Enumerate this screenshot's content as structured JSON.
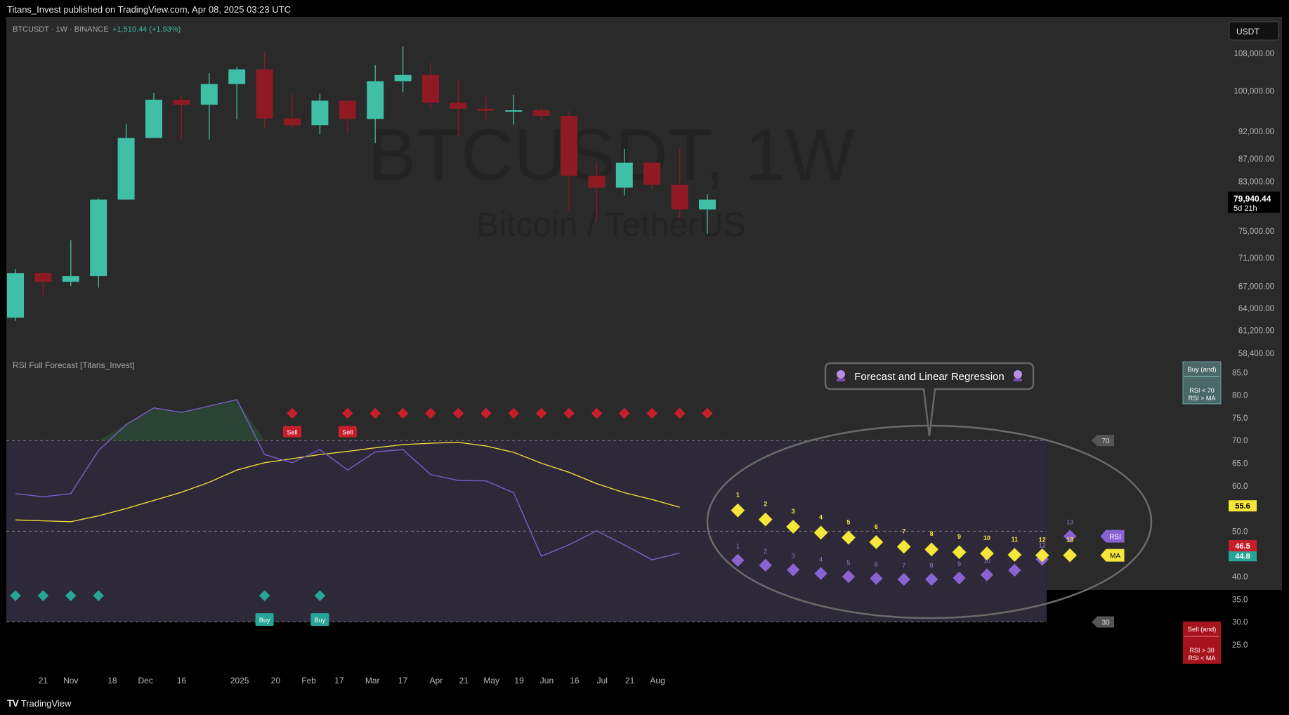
{
  "header": {
    "published": "Titans_Invest published on TradingView.com, Apr 08, 2025 03:23 UTC"
  },
  "footer": {
    "brand": "TradingView",
    "logo_icon": "tradingview-logo-icon"
  },
  "colors": {
    "up": "#3fbfa6",
    "down": "#8f1a24",
    "rsi": "#7b5ec9",
    "ma": "#e8d83c",
    "sell": "#c81e2c",
    "buy": "#27a698",
    "forecast_rsi": "#8a63d2",
    "forecast_ma": "#f5e63a"
  },
  "chart_data": [
    {
      "type": "candlestick",
      "title": "BTCUSDT · 1W · BINANCE",
      "change": "+1,510.44 (+1.93%)",
      "watermark": "BTCUSDT, 1W",
      "watermark_sub": "Bitcoin / TetherUS",
      "currency_button": "USDT",
      "last_price": "79,940.44",
      "countdown": "5d 21h",
      "y_scale": "log",
      "y_range": [
        57800,
        110500
      ],
      "y_ticks": [
        "108,000.00",
        "100,000.00",
        "92,000.00",
        "87,000.00",
        "83,000.00",
        "75,000.00",
        "71,000.00",
        "67,000.00",
        "64,000.00",
        "61,200.00",
        "58,400.00"
      ],
      "candles": [
        {
          "o": 62800,
          "h": 69400,
          "l": 62400,
          "c": 68800
        },
        {
          "o": 68800,
          "h": 69000,
          "l": 65500,
          "c": 67600
        },
        {
          "o": 67600,
          "h": 73600,
          "l": 67000,
          "c": 68400
        },
        {
          "o": 68400,
          "h": 80200,
          "l": 66800,
          "c": 80000
        },
        {
          "o": 80000,
          "h": 93400,
          "l": 80000,
          "c": 90800
        },
        {
          "o": 90800,
          "h": 99600,
          "l": 90800,
          "c": 98200
        },
        {
          "o": 98200,
          "h": 98900,
          "l": 90600,
          "c": 97200
        },
        {
          "o": 97200,
          "h": 103700,
          "l": 90500,
          "c": 101400
        },
        {
          "o": 101400,
          "h": 105000,
          "l": 94300,
          "c": 104500
        },
        {
          "o": 104500,
          "h": 108300,
          "l": 92500,
          "c": 94500
        },
        {
          "o": 94500,
          "h": 99300,
          "l": 92700,
          "c": 93200
        },
        {
          "o": 93200,
          "h": 99400,
          "l": 91500,
          "c": 98000
        },
        {
          "o": 98000,
          "h": 98000,
          "l": 91700,
          "c": 94400
        },
        {
          "o": 94400,
          "h": 105400,
          "l": 89800,
          "c": 102000
        },
        {
          "o": 102000,
          "h": 109500,
          "l": 99700,
          "c": 103300
        },
        {
          "o": 103300,
          "h": 106000,
          "l": 96300,
          "c": 97600
        },
        {
          "o": 97600,
          "h": 102500,
          "l": 91000,
          "c": 96400
        },
        {
          "o": 96400,
          "h": 98700,
          "l": 94000,
          "c": 96000
        },
        {
          "o": 96000,
          "h": 99200,
          "l": 93300,
          "c": 96100
        },
        {
          "o": 96100,
          "h": 96600,
          "l": 94000,
          "c": 95000
        },
        {
          "o": 95000,
          "h": 96000,
          "l": 78200,
          "c": 84000
        },
        {
          "o": 84000,
          "h": 86300,
          "l": 76400,
          "c": 82000
        },
        {
          "o": 82000,
          "h": 88800,
          "l": 80700,
          "c": 86300
        },
        {
          "o": 86300,
          "h": 86400,
          "l": 81800,
          "c": 82500
        },
        {
          "o": 82500,
          "h": 88700,
          "l": 77000,
          "c": 78400
        },
        {
          "o": 78400,
          "h": 80900,
          "l": 74600,
          "c": 80000
        }
      ]
    },
    {
      "type": "line",
      "title": "RSI Full Forecast [Titans_Invest]",
      "callout": "Forecast and Linear Regression",
      "callout_icon": "crystal-ball-icon",
      "y_range": [
        22.5,
        86.6
      ],
      "y_ticks": [
        "85.0",
        "80.0",
        "75.0",
        "70.0",
        "65.0",
        "60.0",
        "55.0",
        "50.0",
        "45.0",
        "40.0",
        "35.0",
        "30.0",
        "25.0"
      ],
      "overbought": "70",
      "oversold": "30",
      "ma_value": "55.6",
      "rsi_value": "46.5",
      "ma2_value": "44.8",
      "x_ticks": [
        {
          "label": "21",
          "i": 1
        },
        {
          "label": "Nov",
          "i": 2
        },
        {
          "label": "18",
          "i": 3.5
        },
        {
          "label": "Dec",
          "i": 4.7
        },
        {
          "label": "16",
          "i": 6
        },
        {
          "label": "2025",
          "i": 8.1
        },
        {
          "label": "20",
          "i": 9.4
        },
        {
          "label": "Feb",
          "i": 10.6
        },
        {
          "label": "17",
          "i": 11.7
        },
        {
          "label": "Mar",
          "i": 12.9
        },
        {
          "label": "17",
          "i": 14
        },
        {
          "label": "Apr",
          "i": 15.2
        },
        {
          "label": "21",
          "i": 16.2
        },
        {
          "label": "May",
          "i": 17.2
        },
        {
          "label": "19",
          "i": 18.2
        },
        {
          "label": "Jun",
          "i": 19.2
        },
        {
          "label": "16",
          "i": 20.2
        },
        {
          "label": "Jul",
          "i": 21.2
        },
        {
          "label": "21",
          "i": 22.2
        },
        {
          "label": "Aug",
          "i": 23.2
        }
      ],
      "series": [
        {
          "values": [
            58.3,
            57.6,
            58.3,
            67.8,
            73.5,
            77.2,
            76.2,
            77.6,
            79.0,
            66.9,
            65.1,
            68.0,
            63.5,
            67.5,
            68.0,
            62.5,
            61.2,
            61.1,
            58.5,
            44.5,
            47.0,
            50.1,
            47.0,
            43.7,
            45.2
          ]
        },
        {
          "values": [
            52.5,
            52.3,
            52.1,
            53.4,
            55.0,
            56.8,
            58.6,
            60.8,
            63.5,
            65.1,
            66.0,
            66.9,
            67.6,
            68.4,
            69.1,
            69.4,
            69.6,
            68.8,
            67.4,
            65.0,
            63.0,
            60.5,
            58.5,
            57.0,
            55.3
          ]
        }
      ],
      "sell_label": "Sell",
      "buy_label": "Buy",
      "sell_marker_x": [
        10,
        12,
        13,
        14,
        15,
        16,
        17,
        18,
        19,
        20,
        21,
        22,
        23,
        24,
        25
      ],
      "sell_label_x": [
        10,
        12
      ],
      "sell_marker_y": 76,
      "buy_marker_x": [
        0,
        1,
        2,
        3,
        9,
        11
      ],
      "buy_label_x": [
        9,
        11
      ],
      "buy_marker_y": 35.8,
      "forecast_rsi": [
        43.6,
        42.5,
        41.5,
        40.7,
        40.0,
        39.6,
        39.4,
        39.4,
        39.7,
        40.4,
        41.4,
        43.8,
        48.9
      ],
      "forecast_ma": [
        54.6,
        52.6,
        51.0,
        49.7,
        48.6,
        47.6,
        46.6,
        46.0,
        45.4,
        45.1,
        44.8,
        44.7,
        44.7
      ],
      "forecast_labels": [
        "1",
        "2",
        "3",
        "4",
        "5",
        "6",
        "7",
        "8",
        "9",
        "10",
        "11",
        "12",
        "13"
      ],
      "tag_rsi": "RSI",
      "tag_ma": "MA",
      "buy_box": {
        "title": "Buy (and)",
        "line1": "RSI < 70",
        "line2": "RSI > MA"
      },
      "sell_box": {
        "title": "Sell (and)",
        "line1": "RSI > 30",
        "line2": "RSI < MA"
      }
    }
  ]
}
